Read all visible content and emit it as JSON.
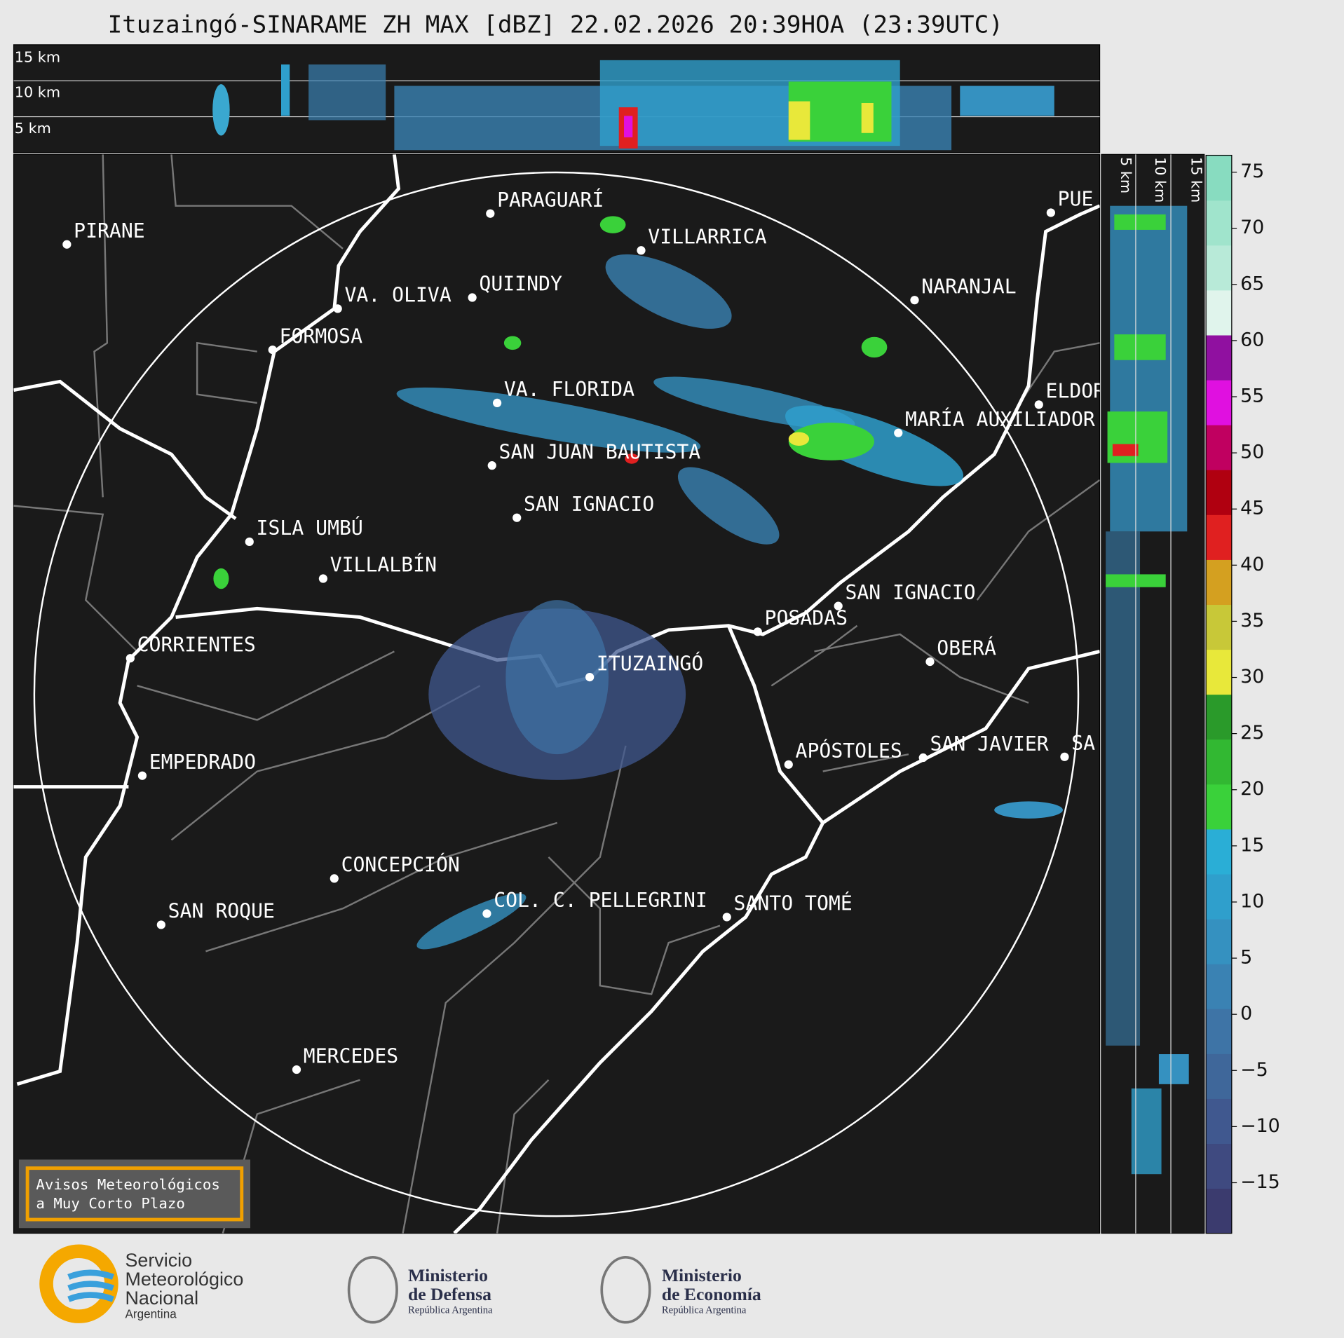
{
  "header": {
    "title": "Ituzaingó-SINARAME ZH MAX [dBZ] 22.02.2026 20:39HOA (23:39UTC)"
  },
  "cross_section": {
    "height_labels": [
      "15 km",
      "10 km",
      "5 km"
    ]
  },
  "cities": [
    {
      "name": "PIRANE"
    },
    {
      "name": "PARAGUARÍ"
    },
    {
      "name": "VILLARRICA"
    },
    {
      "name": "VA. OLIVA"
    },
    {
      "name": "QUIINDY"
    },
    {
      "name": "NARANJAL"
    },
    {
      "name": "FORMOSA"
    },
    {
      "name": "VA. FLORIDA"
    },
    {
      "name": "ELDOR"
    },
    {
      "name": "PUE"
    },
    {
      "name": "MARÍA AUXILIADOR"
    },
    {
      "name": "SAN JUAN BAUTISTA"
    },
    {
      "name": "SAN IGNACIO"
    },
    {
      "name": "ISLA UMBÚ"
    },
    {
      "name": "VILLALBÍN"
    },
    {
      "name": "SAN IGNACIO"
    },
    {
      "name": "POSADAS"
    },
    {
      "name": "CORRIENTES"
    },
    {
      "name": "ITUZAINGÓ"
    },
    {
      "name": "OBERÁ"
    },
    {
      "name": "APÓSTOLES"
    },
    {
      "name": "SAN JAVIER"
    },
    {
      "name": "SA"
    },
    {
      "name": "EMPEDRADO"
    },
    {
      "name": "CONCEPCIÓN"
    },
    {
      "name": "COL. C. PELLEGRINI"
    },
    {
      "name": "SANTO TOMÉ"
    },
    {
      "name": "SAN ROQUE"
    },
    {
      "name": "MERCEDES"
    }
  ],
  "warning_box": {
    "lines": [
      "Avisos Meteorológicos",
      "a Muy Corto Plazo"
    ]
  },
  "colorbar": {
    "lim": [
      -19.5,
      76.5
    ],
    "ticks": [
      75,
      70,
      65,
      60,
      55,
      50,
      45,
      40,
      35,
      30,
      25,
      20,
      15,
      10,
      5,
      0,
      {
        "value": -5,
        "label": "−5"
      },
      {
        "value": -10,
        "label": "−10"
      },
      {
        "value": -15,
        "label": "−15"
      }
    ],
    "colors": [
      "#3b3b6e",
      "#3f4a80",
      "#40588f",
      "#3f679a",
      "#3e74a6",
      "#3a82b3",
      "#3591c0",
      "#2f9fcc",
      "#2aaed6",
      "#3ad13a",
      "#32b832",
      "#2a9a2a",
      "#e8e83a",
      "#c8c838",
      "#d4a020",
      "#e02020",
      "#b00010",
      "#c00060",
      "#e010e0",
      "#9010a0",
      "#e0f4ec",
      "#b8ead8",
      "#a0e4cc",
      "#88dcc0"
    ]
  },
  "logos": [
    {
      "lines": [
        "Servicio",
        "Meteorológico",
        "Nacional",
        "Argentina"
      ]
    },
    {
      "lines": [
        "Ministerio",
        "de Defensa",
        "República Argentina"
      ]
    },
    {
      "lines": [
        "Ministerio",
        "de Economía",
        "República Argentina"
      ]
    }
  ]
}
